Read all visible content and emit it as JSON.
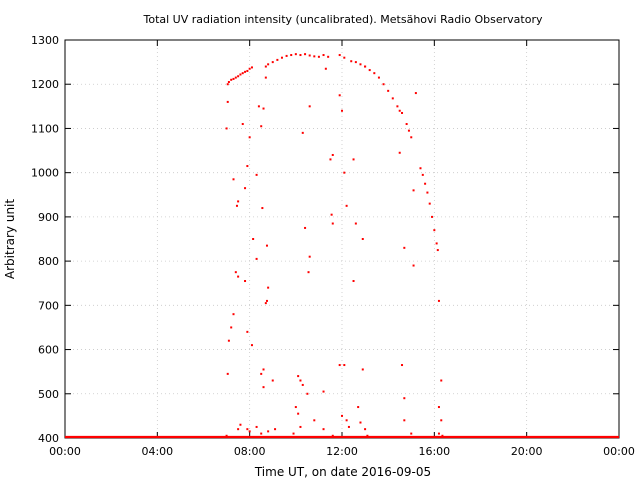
{
  "chart_data": {
    "type": "scatter",
    "title": "Total UV radiation intensity (uncalibrated). Metsähovi Radio Observatory",
    "xlabel": "Time UT, on date 2016-09-05",
    "ylabel": "Arbitrary unit",
    "xlim": [
      "00:00",
      "24:00"
    ],
    "ylim": [
      400,
      1300
    ],
    "x_ticks": [
      "00:00",
      "04:00",
      "08:00",
      "12:00",
      "16:00",
      "20:00",
      "00:00"
    ],
    "y_ticks": [
      400,
      500,
      600,
      700,
      800,
      900,
      1000,
      1100,
      1200,
      1300
    ],
    "grid": true,
    "legend": "none",
    "point_color": "#ff0000",
    "series": [
      {
        "x_unit": "hours UT",
        "points": [
          [
            7.05,
            1200
          ],
          [
            7.1,
            1205
          ],
          [
            7.2,
            1210
          ],
          [
            7.3,
            1212
          ],
          [
            7.4,
            1215
          ],
          [
            7.5,
            1218
          ],
          [
            7.6,
            1222
          ],
          [
            7.7,
            1225
          ],
          [
            7.8,
            1228
          ],
          [
            7.9,
            1230
          ],
          [
            8.0,
            1235
          ],
          [
            8.1,
            1238
          ],
          [
            8.7,
            1240
          ],
          [
            8.8,
            1245
          ],
          [
            9.0,
            1250
          ],
          [
            9.2,
            1255
          ],
          [
            9.4,
            1260
          ],
          [
            9.6,
            1264
          ],
          [
            9.8,
            1266
          ],
          [
            10.0,
            1268
          ],
          [
            10.2,
            1266
          ],
          [
            10.4,
            1268
          ],
          [
            10.6,
            1265
          ],
          [
            10.8,
            1263
          ],
          [
            11.0,
            1262
          ],
          [
            11.2,
            1266
          ],
          [
            11.4,
            1262
          ],
          [
            11.9,
            1266
          ],
          [
            12.1,
            1260
          ],
          [
            12.4,
            1252
          ],
          [
            12.6,
            1250
          ],
          [
            12.8,
            1245
          ],
          [
            13.0,
            1240
          ],
          [
            13.2,
            1232
          ],
          [
            13.4,
            1225
          ],
          [
            13.6,
            1215
          ],
          [
            13.8,
            1200
          ],
          [
            14.0,
            1185
          ],
          [
            14.2,
            1168
          ],
          [
            14.4,
            1150
          ],
          [
            14.5,
            1140
          ],
          [
            14.6,
            1135
          ],
          [
            14.8,
            1110
          ],
          [
            14.9,
            1095
          ],
          [
            15.0,
            1080
          ],
          [
            15.4,
            1010
          ],
          [
            15.5,
            995
          ],
          [
            15.6,
            975
          ],
          [
            15.7,
            955
          ],
          [
            15.8,
            930
          ],
          [
            15.9,
            900
          ],
          [
            16.0,
            870
          ],
          [
            16.1,
            840
          ],
          [
            16.15,
            825
          ],
          [
            7.0,
            1100
          ],
          [
            7.05,
            1160
          ],
          [
            7.3,
            985
          ],
          [
            7.45,
            925
          ],
          [
            7.5,
            935
          ],
          [
            7.7,
            1110
          ],
          [
            7.8,
            965
          ],
          [
            7.9,
            1015
          ],
          [
            8.0,
            1080
          ],
          [
            8.15,
            850
          ],
          [
            8.3,
            995
          ],
          [
            8.4,
            1150
          ],
          [
            8.5,
            1105
          ],
          [
            8.6,
            1145
          ],
          [
            8.7,
            1215
          ],
          [
            8.55,
            920
          ],
          [
            8.75,
            835
          ],
          [
            8.8,
            740
          ],
          [
            10.3,
            1090
          ],
          [
            10.4,
            875
          ],
          [
            10.6,
            1150
          ],
          [
            11.3,
            1235
          ],
          [
            11.5,
            1030
          ],
          [
            11.6,
            1040
          ],
          [
            11.55,
            905
          ],
          [
            11.6,
            885
          ],
          [
            11.9,
            1175
          ],
          [
            12.0,
            1140
          ],
          [
            12.1,
            1000
          ],
          [
            12.2,
            925
          ],
          [
            12.5,
            1030
          ],
          [
            12.6,
            885
          ],
          [
            13.0,
            1240
          ],
          [
            12.9,
            850
          ],
          [
            14.5,
            1045
          ],
          [
            14.7,
            830
          ],
          [
            15.1,
            960
          ],
          [
            15.2,
            1180
          ],
          [
            7.05,
            545
          ],
          [
            7.1,
            620
          ],
          [
            7.2,
            650
          ],
          [
            7.3,
            680
          ],
          [
            7.4,
            775
          ],
          [
            7.5,
            765
          ],
          [
            7.8,
            755
          ],
          [
            7.9,
            640
          ],
          [
            8.1,
            610
          ],
          [
            8.3,
            805
          ],
          [
            8.5,
            545
          ],
          [
            8.6,
            555
          ],
          [
            8.7,
            705
          ],
          [
            8.75,
            710
          ],
          [
            8.6,
            515
          ],
          [
            9.0,
            530
          ],
          [
            10.1,
            540
          ],
          [
            10.2,
            530
          ],
          [
            10.3,
            520
          ],
          [
            10.5,
            500
          ],
          [
            10.55,
            775
          ],
          [
            10.6,
            810
          ],
          [
            11.2,
            505
          ],
          [
            11.9,
            565
          ],
          [
            12.0,
            450
          ],
          [
            12.1,
            565
          ],
          [
            12.5,
            755
          ],
          [
            12.7,
            470
          ],
          [
            12.9,
            555
          ],
          [
            12.2,
            440
          ],
          [
            14.6,
            565
          ],
          [
            14.7,
            490
          ],
          [
            15.1,
            790
          ],
          [
            16.2,
            710
          ],
          [
            16.3,
            530
          ],
          [
            16.2,
            470
          ],
          [
            16.3,
            440
          ],
          [
            7.0,
            405
          ],
          [
            7.5,
            420
          ],
          [
            7.6,
            430
          ],
          [
            7.9,
            420
          ],
          [
            8.0,
            415
          ],
          [
            8.3,
            425
          ],
          [
            8.5,
            410
          ],
          [
            8.8,
            415
          ],
          [
            9.1,
            420
          ],
          [
            9.9,
            410
          ],
          [
            10.0,
            470
          ],
          [
            10.1,
            455
          ],
          [
            10.2,
            425
          ],
          [
            10.8,
            440
          ],
          [
            11.2,
            420
          ],
          [
            11.6,
            405
          ],
          [
            12.3,
            425
          ],
          [
            12.8,
            435
          ],
          [
            13.0,
            420
          ],
          [
            13.1,
            405
          ],
          [
            14.7,
            440
          ],
          [
            15.0,
            410
          ],
          [
            16.2,
            410
          ],
          [
            16.35,
            405
          ]
        ]
      }
    ]
  }
}
